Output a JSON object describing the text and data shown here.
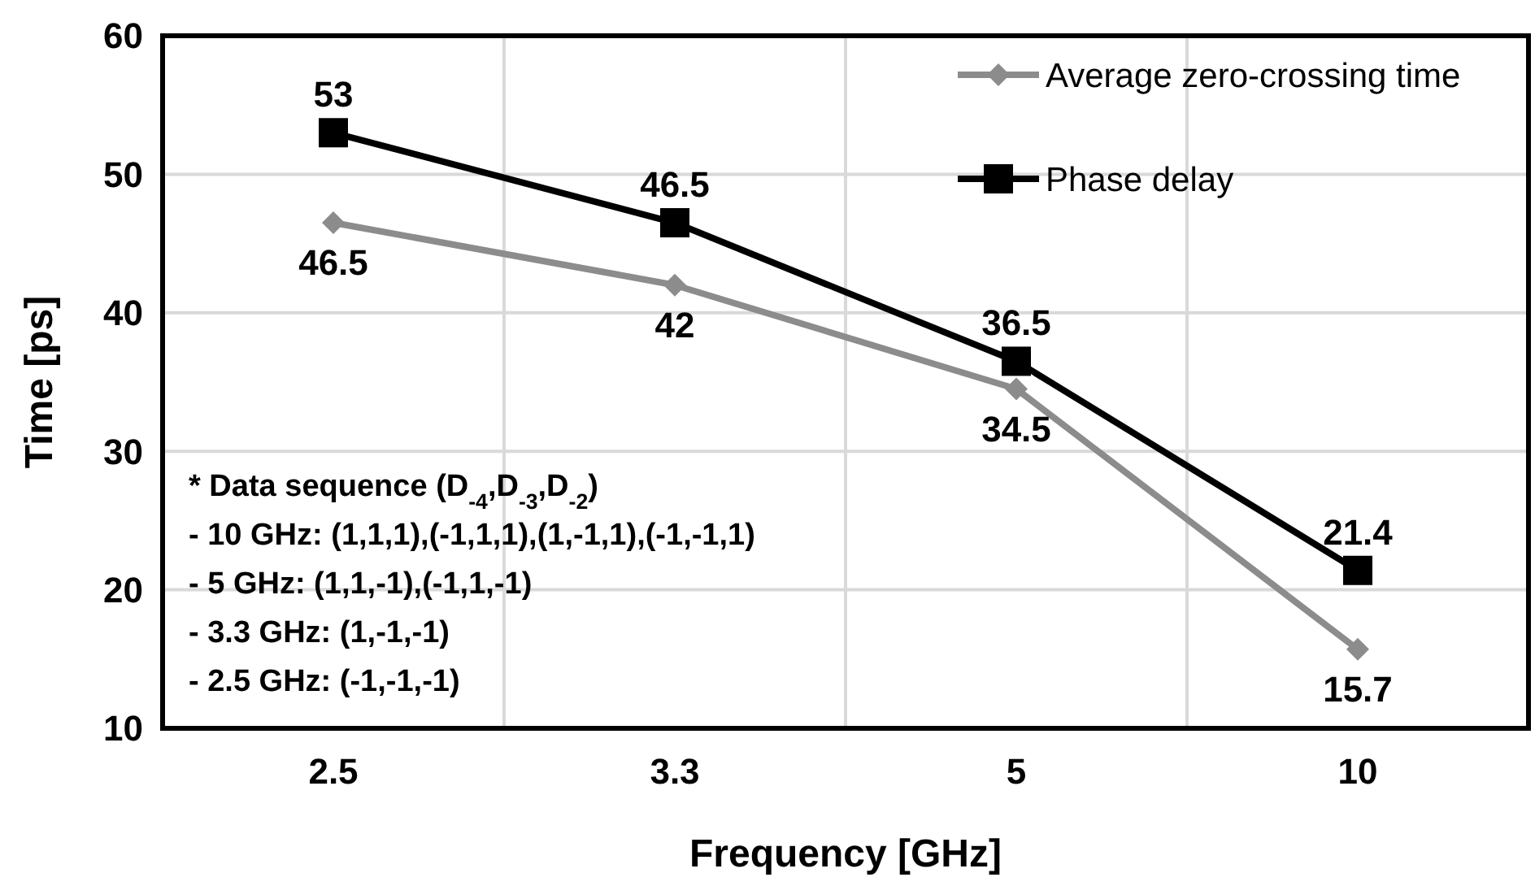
{
  "chart_data": {
    "type": "line",
    "xlabel": "Frequency [GHz]",
    "ylabel": "Time [ps]",
    "categories": [
      "2.5",
      "3.3",
      "5",
      "10"
    ],
    "series": [
      {
        "name": "Average zero-crossing time",
        "color": "#8c8c8c",
        "marker": "diamond",
        "values": [
          46.5,
          42,
          34.5,
          15.7
        ]
      },
      {
        "name": "Phase delay",
        "color": "#000000",
        "marker": "square",
        "values": [
          53,
          46.5,
          36.5,
          21.4
        ]
      }
    ],
    "ylim": [
      10,
      60
    ],
    "yticks": [
      10,
      20,
      30,
      40,
      50,
      60
    ],
    "grid": true,
    "legend": "top right",
    "data_labels": true,
    "annotations": [
      "* Data sequence (D$_{-4}$,D$_{-3}$,D$_{-2}$)",
      "- 10 GHz: (1,1,1),(-1,1,1),(1,-1,1),(-1,-1,1)",
      "- 5 GHz: (1,1,-1),(-1,1,-1)",
      "- 3.3 GHz: (1,-1,-1)",
      "- 2.5 GHz: (-1,-1,-1)"
    ]
  }
}
